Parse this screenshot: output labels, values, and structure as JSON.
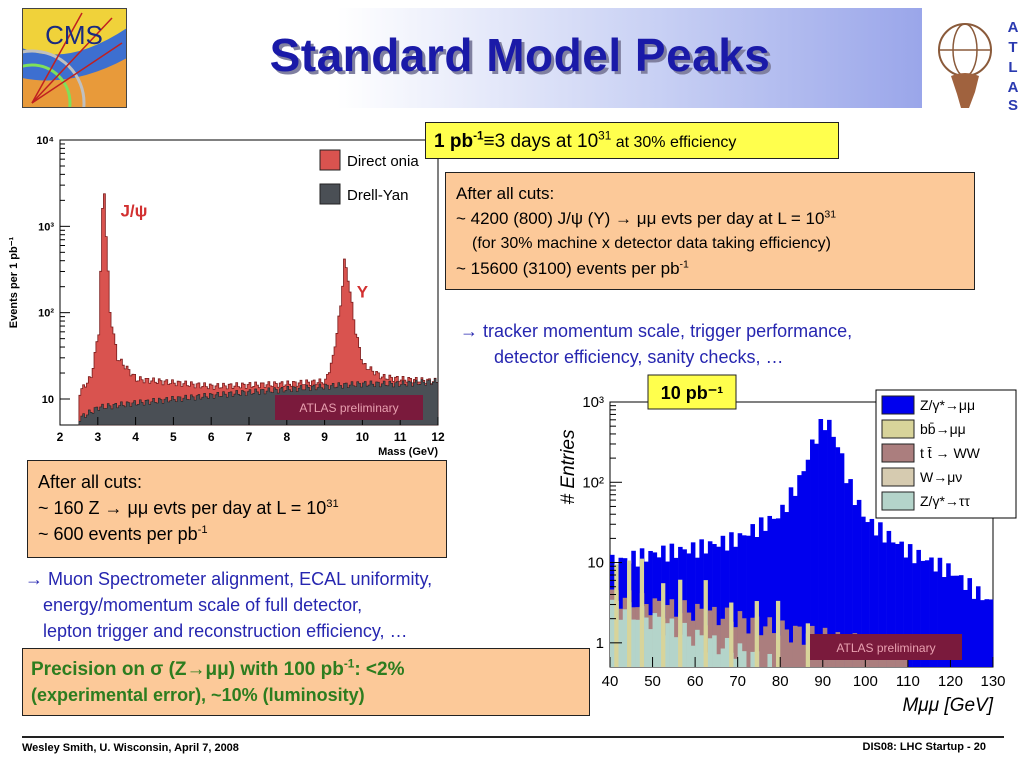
{
  "slide": {
    "title": "Standard Model Peaks",
    "cms_logo_text": "CMS",
    "atlas_logo_letters": [
      "A",
      "T",
      "L",
      "A",
      "S"
    ]
  },
  "lumi_box": {
    "bold": "1 pb",
    "bold_sup": "-1",
    "equiv": "≡",
    "text": "3 days at 10",
    "sup": "31",
    "small": " at 30% efficiency"
  },
  "right_cuts": {
    "line1": "After all cuts:",
    "line2a": "~ 4200 (800) J/ψ (Y) → μμ evts per day at L = 10",
    "line2_sup": "31",
    "line3": "(for 30% machine x detector data taking efficiency)",
    "line4a": "~ 15600 (3100) events per pb",
    "line4_sup": "-1"
  },
  "right_arrow": {
    "line1": "→ tracker momentum scale, trigger performance,",
    "line2": "detector efficiency, sanity checks, …"
  },
  "left_cuts": {
    "line1": "After all cuts:",
    "line2a": "~ 160 Z → μμ  evts per day at  L = 10",
    "line2_sup": "31",
    "line3a": "~ 600 events per pb",
    "line3_sup": "-1"
  },
  "left_arrow": {
    "line1": "→ Muon Spectrometer alignment, ECAL uniformity,",
    "line2": "energy/momentum scale of full detector,",
    "line3": "lepton trigger and reconstruction efficiency, …"
  },
  "precision": {
    "line1a": "Precision on σ (Z→μμ)  with 100 pb",
    "line1_sup": "-1",
    "line1b": ": <2%",
    "line2": "(experimental error), ~10% (luminosity)"
  },
  "footer": {
    "left": "Wesley Smith, U. Wisconsin, April 7, 2008",
    "right": "DIS08: LHC Startup -  20"
  },
  "chart_data": [
    {
      "type": "area",
      "ylabel": "Events per 1 pb⁻¹",
      "xlabel": "Mass (GeV)",
      "xlim": [
        2,
        12
      ],
      "ylim": [
        5,
        10000
      ],
      "yscale": "log",
      "xticks": [
        "2",
        "3",
        "4",
        "5",
        "6",
        "7",
        "8",
        "9",
        "10",
        "11",
        "12"
      ],
      "yticks": [
        "10",
        "10²",
        "10³",
        "10⁴"
      ],
      "legend_position": "top-right",
      "badge": "ATLAS preliminary",
      "annotations": [
        "J/ψ",
        "Y"
      ],
      "colors": {
        "direct_onia": "#d9534f",
        "drell_yan": "#4a4f55"
      },
      "series": [
        {
          "name": "Direct onia",
          "x": [
            2.5,
            2.8,
            3.0,
            3.05,
            3.1,
            3.15,
            3.2,
            3.3,
            3.5,
            4.0,
            6.0,
            8.0,
            9.0,
            9.2,
            9.4,
            9.5,
            9.6,
            9.8,
            10.0,
            10.5,
            11.0,
            12.0
          ],
          "y": [
            12,
            18,
            60,
            300,
            1500,
            2500,
            800,
            100,
            30,
            17,
            14,
            15,
            16,
            30,
            120,
            400,
            250,
            60,
            25,
            18,
            17,
            16
          ]
        },
        {
          "name": "Drell-Yan",
          "x": [
            2.5,
            3.0,
            4.0,
            5.0,
            6.0,
            7.0,
            8.0,
            9.0,
            10.0,
            11.0,
            12.0
          ],
          "y": [
            6,
            8,
            9,
            10,
            11,
            12,
            13,
            14,
            15,
            15,
            16
          ]
        }
      ]
    },
    {
      "type": "bar",
      "ylabel": "# Entries",
      "xlabel": "Mμμ [GeV]",
      "xlim": [
        40,
        130
      ],
      "ylim": [
        0.5,
        1000
      ],
      "yscale": "log",
      "xticks": [
        "40",
        "50",
        "60",
        "70",
        "80",
        "90",
        "100",
        "110",
        "120",
        "130"
      ],
      "yticks": [
        "1",
        "10",
        "10²",
        "10³"
      ],
      "lumi_label": "10 pb⁻¹",
      "badge": "ATLAS preliminary",
      "legend_position": "top-right",
      "colors": {
        "z_mumu": "#0000ee",
        "bb": "#d8d49a",
        "tt": "#ab7e7e",
        "w": "#d6cbb0",
        "z_tautau": "#b4d4ca"
      },
      "series": [
        {
          "name": "Z/γ*→μμ",
          "x": [
            40,
            50,
            60,
            70,
            80,
            85,
            88,
            90,
            91,
            92,
            94,
            96,
            100,
            110,
            120,
            130
          ],
          "y": [
            10,
            13,
            15,
            20,
            40,
            120,
            350,
            550,
            600,
            450,
            250,
            100,
            35,
            14,
            8,
            3
          ]
        },
        {
          "name": "bb̄→μμ",
          "x": [
            40,
            50,
            60,
            70,
            80,
            90,
            100
          ],
          "y": [
            5,
            3,
            2,
            1.5,
            1,
            0.8,
            0.6
          ]
        },
        {
          "name": "t t̄ → WW",
          "x": [
            40,
            50,
            60,
            70,
            80,
            90,
            100,
            110
          ],
          "y": [
            4,
            3,
            2.5,
            2,
            1.5,
            1.2,
            1,
            0.8
          ]
        },
        {
          "name": "W→μν",
          "x": [
            40,
            50,
            60,
            70
          ],
          "y": [
            2,
            1.5,
            1,
            0.7
          ]
        },
        {
          "name": "Z/γ*→ττ",
          "x": [
            40,
            50,
            60,
            70,
            80
          ],
          "y": [
            3,
            2,
            1.2,
            0.8,
            0.5
          ]
        }
      ]
    }
  ]
}
